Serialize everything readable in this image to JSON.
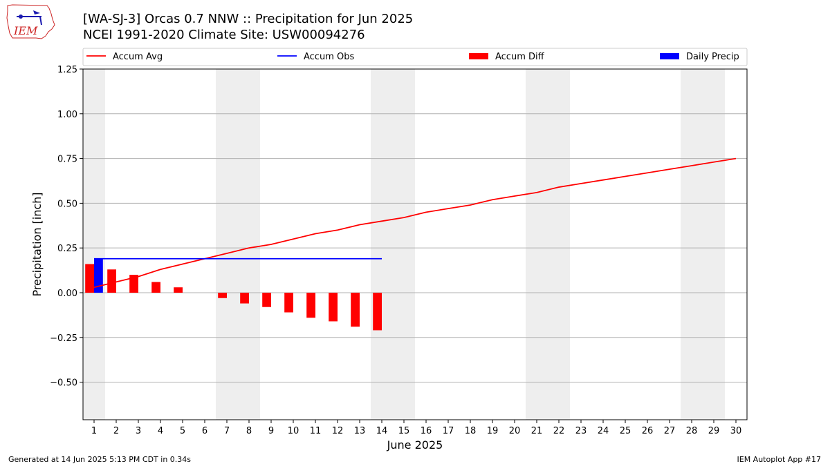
{
  "header": {
    "title_line1": "[WA-SJ-3] Orcas 0.7 NNW :: Precipitation for Jun 2025",
    "title_line2": "NCEI 1991-2020 Climate Site: USW00094276",
    "logo_text": "IEM"
  },
  "footer": {
    "generated": "Generated at 14 Jun 2025 5:13 PM CDT in 0.34s",
    "app": "IEM Autoplot App #17"
  },
  "chart_data": {
    "type": "line",
    "xlabel": "June 2025",
    "ylabel": "Precipitation [inch]",
    "ylim": [
      -0.71,
      1.25
    ],
    "xlim": [
      0.5,
      30.5
    ],
    "yticks": [
      -0.5,
      -0.25,
      0.0,
      0.25,
      0.5,
      0.75,
      1.0,
      1.25
    ],
    "ytick_labels": [
      "−0.50",
      "−0.25",
      "0.00",
      "0.25",
      "0.50",
      "0.75",
      "1.00",
      "1.25"
    ],
    "x": [
      1,
      2,
      3,
      4,
      5,
      6,
      7,
      8,
      9,
      10,
      11,
      12,
      13,
      14,
      15,
      16,
      17,
      18,
      19,
      20,
      21,
      22,
      23,
      24,
      25,
      26,
      27,
      28,
      29,
      30
    ],
    "grid": "horizontal",
    "legend_position": "top",
    "weekend_shading": [
      [
        0.5,
        1.5
      ],
      [
        6.5,
        8.5
      ],
      [
        13.5,
        15.5
      ],
      [
        20.5,
        22.5
      ],
      [
        27.5,
        29.5
      ]
    ],
    "shade_color": "#eeeeee",
    "series": [
      {
        "name": "Accum Avg",
        "kind": "line",
        "color": "#ff0000",
        "x": [
          1,
          2,
          3,
          4,
          5,
          6,
          7,
          8,
          9,
          10,
          11,
          12,
          13,
          14,
          15,
          16,
          17,
          18,
          19,
          20,
          21,
          22,
          23,
          24,
          25,
          26,
          27,
          28,
          29,
          30
        ],
        "values": [
          0.03,
          0.06,
          0.09,
          0.13,
          0.16,
          0.19,
          0.22,
          0.25,
          0.27,
          0.3,
          0.33,
          0.35,
          0.38,
          0.4,
          0.42,
          0.45,
          0.47,
          0.49,
          0.52,
          0.54,
          0.56,
          0.59,
          0.61,
          0.63,
          0.65,
          0.67,
          0.69,
          0.71,
          0.73,
          0.75
        ]
      },
      {
        "name": "Accum Obs",
        "kind": "line",
        "color": "#0000ff",
        "x": [
          1,
          2,
          3,
          4,
          5,
          6,
          7,
          8,
          9,
          10,
          11,
          12,
          13,
          14
        ],
        "values": [
          0.19,
          0.19,
          0.19,
          0.19,
          0.19,
          0.19,
          0.19,
          0.19,
          0.19,
          0.19,
          0.19,
          0.19,
          0.19,
          0.19
        ]
      },
      {
        "name": "Accum Diff",
        "kind": "bar",
        "color": "#ff0000",
        "x": [
          1,
          2,
          3,
          4,
          5,
          6,
          7,
          8,
          9,
          10,
          11,
          12,
          13,
          14
        ],
        "values": [
          0.16,
          0.13,
          0.1,
          0.06,
          0.03,
          0.0,
          -0.03,
          -0.06,
          -0.08,
          -0.11,
          -0.14,
          -0.16,
          -0.19,
          -0.21
        ]
      },
      {
        "name": "Daily Precip",
        "kind": "bar",
        "color": "#0000ff",
        "x": [
          1,
          2,
          3,
          4,
          5,
          6,
          7,
          8,
          9,
          10,
          11,
          12,
          13,
          14
        ],
        "values": [
          0.19,
          0,
          0,
          0,
          0,
          0,
          0,
          0,
          0,
          0,
          0,
          0,
          0,
          0
        ]
      }
    ]
  }
}
